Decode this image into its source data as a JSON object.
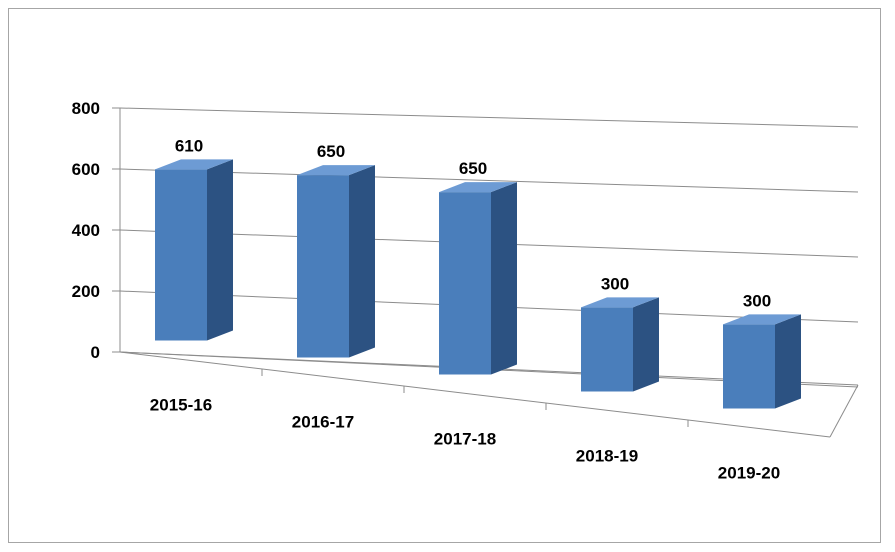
{
  "chart_data": {
    "type": "bar",
    "style": "3d-column",
    "categories": [
      "2015-16",
      "2016-17",
      "2017-18",
      "2018-19",
      "2019-20"
    ],
    "values": [
      610,
      650,
      650,
      300,
      300
    ],
    "ylim": [
      0,
      800
    ],
    "yticks": [
      "0",
      "200",
      "400",
      "600",
      "800"
    ],
    "grid": true,
    "colors": {
      "bar_front": "#4a7ebb",
      "bar_side": "#2c5282",
      "bar_top": "#6d9bd4",
      "grid": "#8c8c8c"
    }
  }
}
